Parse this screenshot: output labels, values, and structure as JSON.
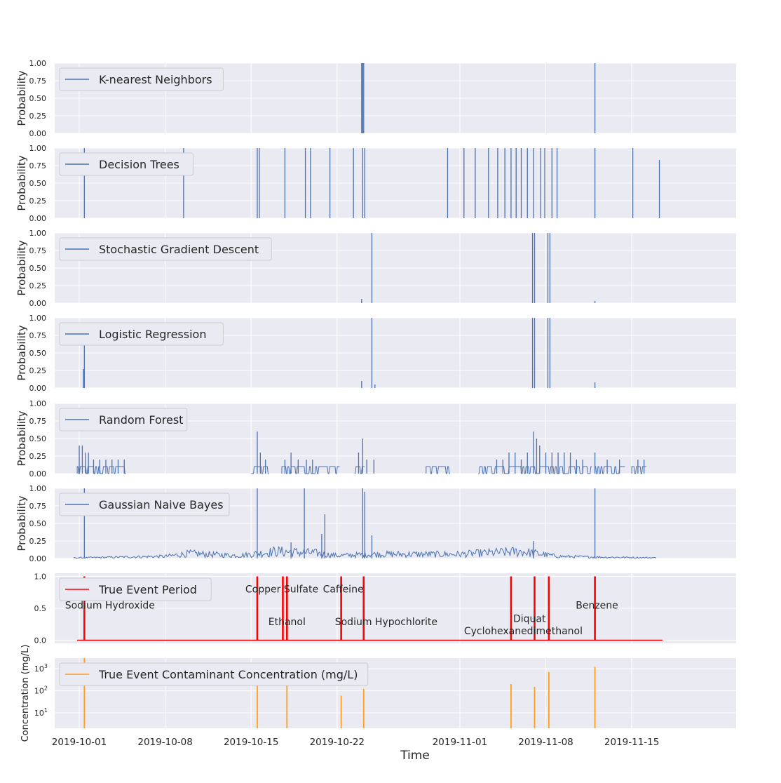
{
  "chart_data": {
    "type": "line",
    "xlabel": "Time",
    "x_range": [
      "2019-09-29T00:00",
      "2019-11-23T12:00"
    ],
    "x_ticks": [
      "2019-10-01",
      "2019-10-08",
      "2019-10-15",
      "2019-10-22",
      "2019-11-01",
      "2019-11-08",
      "2019-11-15"
    ],
    "grid": true,
    "legend_position": "upper-left",
    "panels": [
      {
        "ylabel": "Probability",
        "ylim": [
          0,
          1
        ],
        "yticks": [
          "0.00",
          "0.25",
          "0.50",
          "0.75",
          "1.00"
        ],
        "series": [
          {
            "name": "K-nearest Neighbors",
            "color": "#4c72b0",
            "spikes": [
              {
                "t": "2019-10-24T00:00",
                "v": 1.0
              },
              {
                "t": "2019-10-24T02:00",
                "v": 1.0
              },
              {
                "t": "2019-10-24T04:00",
                "v": 1.0
              },
              {
                "t": "2019-11-12T00:00",
                "v": 1.0
              }
            ]
          }
        ]
      },
      {
        "ylabel": "Probability",
        "ylim": [
          0,
          1
        ],
        "yticks": [
          "0.00",
          "0.25",
          "0.50",
          "0.75",
          "1.00"
        ],
        "series": [
          {
            "name": "Decision Trees",
            "color": "#4c72b0",
            "spikes": [
              {
                "t": "2019-10-01T10:00",
                "v": 1.0
              },
              {
                "t": "2019-10-09T12:00",
                "v": 1.0
              },
              {
                "t": "2019-10-15T12:00",
                "v": 1.0
              },
              {
                "t": "2019-10-15T16:00",
                "v": 1.0
              },
              {
                "t": "2019-10-17T18:00",
                "v": 1.0
              },
              {
                "t": "2019-10-19T10:00",
                "v": 1.0
              },
              {
                "t": "2019-10-19T20:00",
                "v": 1.0
              },
              {
                "t": "2019-10-21T10:00",
                "v": 1.0
              },
              {
                "t": "2019-10-23T08:00",
                "v": 1.0
              },
              {
                "t": "2019-10-24T02:00",
                "v": 1.0
              },
              {
                "t": "2019-10-24T06:00",
                "v": 1.0
              },
              {
                "t": "2019-10-31T00:00",
                "v": 1.0
              },
              {
                "t": "2019-11-01T08:00",
                "v": 1.0
              },
              {
                "t": "2019-11-02T06:00",
                "v": 1.0
              },
              {
                "t": "2019-11-03T08:00",
                "v": 1.0
              },
              {
                "t": "2019-11-04T02:00",
                "v": 1.0
              },
              {
                "t": "2019-11-04T16:00",
                "v": 1.0
              },
              {
                "t": "2019-11-05T04:00",
                "v": 1.0
              },
              {
                "t": "2019-11-05T14:00",
                "v": 1.0
              },
              {
                "t": "2019-11-06T00:00",
                "v": 1.0
              },
              {
                "t": "2019-11-06T12:00",
                "v": 1.0
              },
              {
                "t": "2019-11-07T00:00",
                "v": 1.0
              },
              {
                "t": "2019-11-07T14:00",
                "v": 1.0
              },
              {
                "t": "2019-11-07T22:00",
                "v": 1.0
              },
              {
                "t": "2019-11-08T12:00",
                "v": 1.0
              },
              {
                "t": "2019-11-08T22:00",
                "v": 1.0
              },
              {
                "t": "2019-11-12T00:00",
                "v": 1.0
              },
              {
                "t": "2019-11-15T02:00",
                "v": 1.0
              },
              {
                "t": "2019-11-17T06:00",
                "v": 0.83
              }
            ]
          }
        ]
      },
      {
        "ylabel": "Probability",
        "ylim": [
          0,
          1
        ],
        "yticks": [
          "0.00",
          "0.25",
          "0.50",
          "0.75",
          "1.00"
        ],
        "series": [
          {
            "name": "Stochastic Gradient Descent",
            "color": "#4c72b0",
            "spikes": [
              {
                "t": "2019-10-24T00:00",
                "v": 0.06
              },
              {
                "t": "2019-10-24T20:00",
                "v": 1.0
              },
              {
                "t": "2019-11-06T22:00",
                "v": 1.0
              },
              {
                "t": "2019-11-07T02:00",
                "v": 1.0
              },
              {
                "t": "2019-11-08T04:00",
                "v": 1.0
              },
              {
                "t": "2019-11-08T08:00",
                "v": 1.0
              },
              {
                "t": "2019-11-12T00:00",
                "v": 0.03
              }
            ]
          }
        ]
      },
      {
        "ylabel": "Probability",
        "ylim": [
          0,
          1
        ],
        "yticks": [
          "0.00",
          "0.25",
          "0.50",
          "0.75",
          "1.00"
        ],
        "series": [
          {
            "name": "Logistic Regression",
            "color": "#4c72b0",
            "spikes": [
              {
                "t": "2019-10-01T10:00",
                "v": 0.63
              },
              {
                "t": "2019-10-01T08:00",
                "v": 0.27
              },
              {
                "t": "2019-10-24T00:00",
                "v": 0.1
              },
              {
                "t": "2019-10-24T20:00",
                "v": 1.0
              },
              {
                "t": "2019-10-25T02:00",
                "v": 0.05
              },
              {
                "t": "2019-11-06T22:00",
                "v": 1.0
              },
              {
                "t": "2019-11-07T02:00",
                "v": 1.0
              },
              {
                "t": "2019-11-08T04:00",
                "v": 1.0
              },
              {
                "t": "2019-11-08T08:00",
                "v": 1.0
              },
              {
                "t": "2019-11-12T00:00",
                "v": 0.08
              }
            ]
          }
        ]
      },
      {
        "ylabel": "Probability",
        "ylim": [
          0,
          1
        ],
        "yticks": [
          "0.00",
          "0.25",
          "0.50",
          "0.75",
          "1.00"
        ],
        "series": [
          {
            "name": "Random Forest",
            "color": "#4c72b0",
            "spikes": [
              {
                "t": "2019-10-01T00:00",
                "v": 0.4
              },
              {
                "t": "2019-10-01T06:00",
                "v": 0.4
              },
              {
                "t": "2019-10-01T12:00",
                "v": 0.3
              },
              {
                "t": "2019-10-01T18:00",
                "v": 0.3
              },
              {
                "t": "2019-10-02T04:00",
                "v": 0.2
              },
              {
                "t": "2019-10-02T16:00",
                "v": 0.2
              },
              {
                "t": "2019-10-03T04:00",
                "v": 0.2
              },
              {
                "t": "2019-10-03T16:00",
                "v": 0.2
              },
              {
                "t": "2019-10-04T04:00",
                "v": 0.2
              },
              {
                "t": "2019-10-04T16:00",
                "v": 0.2
              },
              {
                "t": "2019-10-15T12:00",
                "v": 0.6
              },
              {
                "t": "2019-10-15T18:00",
                "v": 0.3
              },
              {
                "t": "2019-10-16T04:00",
                "v": 0.2
              },
              {
                "t": "2019-10-17T18:00",
                "v": 0.2
              },
              {
                "t": "2019-10-18T06:00",
                "v": 0.3
              },
              {
                "t": "2019-10-18T20:00",
                "v": 0.2
              },
              {
                "t": "2019-10-19T12:00",
                "v": 0.2
              },
              {
                "t": "2019-10-20T00:00",
                "v": 0.2
              },
              {
                "t": "2019-10-23T18:00",
                "v": 0.3
              },
              {
                "t": "2019-10-24T02:00",
                "v": 0.5
              },
              {
                "t": "2019-10-24T10:00",
                "v": 0.2
              },
              {
                "t": "2019-10-25T00:00",
                "v": 0.2
              },
              {
                "t": "2019-11-04T00:00",
                "v": 0.2
              },
              {
                "t": "2019-11-04T12:00",
                "v": 0.2
              },
              {
                "t": "2019-11-05T00:00",
                "v": 0.3
              },
              {
                "t": "2019-11-05T12:00",
                "v": 0.3
              },
              {
                "t": "2019-11-06T00:00",
                "v": 0.2
              },
              {
                "t": "2019-11-06T12:00",
                "v": 0.3
              },
              {
                "t": "2019-11-07T00:00",
                "v": 0.6
              },
              {
                "t": "2019-11-07T06:00",
                "v": 0.5
              },
              {
                "t": "2019-11-07T12:00",
                "v": 0.4
              },
              {
                "t": "2019-11-08T00:00",
                "v": 0.3
              },
              {
                "t": "2019-11-08T12:00",
                "v": 0.3
              },
              {
                "t": "2019-11-09T00:00",
                "v": 0.3
              },
              {
                "t": "2019-11-09T12:00",
                "v": 0.3
              },
              {
                "t": "2019-11-10T00:00",
                "v": 0.3
              },
              {
                "t": "2019-11-10T12:00",
                "v": 0.2
              },
              {
                "t": "2019-11-11T00:00",
                "v": 0.2
              },
              {
                "t": "2019-11-12T00:00",
                "v": 0.3
              },
              {
                "t": "2019-11-13T00:00",
                "v": 0.2
              },
              {
                "t": "2019-11-14T00:00",
                "v": 0.2
              },
              {
                "t": "2019-11-15T12:00",
                "v": 0.2
              },
              {
                "t": "2019-11-16T00:00",
                "v": 0.2
              }
            ],
            "baseline": [
              {
                "start": "2019-09-30T20:00",
                "end": "2019-10-04T20:00",
                "v": 0.1
              },
              {
                "start": "2019-10-15T00:00",
                "end": "2019-10-16T12:00",
                "v": 0.1
              },
              {
                "start": "2019-10-17T12:00",
                "end": "2019-10-22T06:00",
                "v": 0.1
              },
              {
                "start": "2019-10-23T10:00",
                "end": "2019-10-24T06:00",
                "v": 0.1
              },
              {
                "start": "2019-10-29T06:00",
                "end": "2019-10-31T06:00",
                "v": 0.1
              },
              {
                "start": "2019-11-02T12:00",
                "end": "2019-11-11T18:00",
                "v": 0.1
              },
              {
                "start": "2019-11-12T00:00",
                "end": "2019-11-14T12:00",
                "v": 0.1
              },
              {
                "start": "2019-11-15T00:00",
                "end": "2019-11-16T06:00",
                "v": 0.1
              }
            ]
          }
        ]
      },
      {
        "ylabel": "Probability",
        "ylim": [
          0,
          1
        ],
        "yticks": [
          "0.00",
          "0.25",
          "0.50",
          "0.75",
          "1.00"
        ],
        "series": [
          {
            "name": "Gaussian Naive Bayes",
            "color": "#4c72b0",
            "noise_level": [
              {
                "t": "2019-10-01T00:00",
                "v": 0.01
              },
              {
                "t": "2019-10-08T00:00",
                "v": 0.03
              },
              {
                "t": "2019-10-10T00:00",
                "v": 0.07
              },
              {
                "t": "2019-10-14T00:00",
                "v": 0.04
              },
              {
                "t": "2019-10-17T00:00",
                "v": 0.1
              },
              {
                "t": "2019-10-20T00:00",
                "v": 0.08
              },
              {
                "t": "2019-10-22T00:00",
                "v": 0.04
              },
              {
                "t": "2019-10-25T00:00",
                "v": 0.06
              },
              {
                "t": "2019-11-01T00:00",
                "v": 0.06
              },
              {
                "t": "2019-11-06T00:00",
                "v": 0.1
              },
              {
                "t": "2019-11-09T00:00",
                "v": 0.03
              },
              {
                "t": "2019-11-12T00:00",
                "v": 0.02
              },
              {
                "t": "2019-11-17T00:00",
                "v": 0.01
              }
            ],
            "spikes": [
              {
                "t": "2019-10-01T10:00",
                "v": 1.0
              },
              {
                "t": "2019-10-15T12:00",
                "v": 1.0
              },
              {
                "t": "2019-10-18T06:00",
                "v": 0.23
              },
              {
                "t": "2019-10-19T08:00",
                "v": 1.0
              },
              {
                "t": "2019-10-21T00:00",
                "v": 0.63
              },
              {
                "t": "2019-10-20T18:00",
                "v": 0.35
              },
              {
                "t": "2019-10-24T02:00",
                "v": 1.0
              },
              {
                "t": "2019-10-24T06:00",
                "v": 0.95
              },
              {
                "t": "2019-10-24T20:00",
                "v": 0.33
              },
              {
                "t": "2019-11-07T00:00",
                "v": 0.25
              },
              {
                "t": "2019-11-12T00:00",
                "v": 1.0
              }
            ]
          }
        ]
      },
      {
        "ylim": [
          -0.05,
          1.05
        ],
        "yticks": [
          "0.0",
          "0.5",
          "1.0"
        ],
        "series": [
          {
            "name": "True Event Period",
            "color": "#ff0000",
            "baseline_range": [
              "2019-09-30T20:00",
              "2019-11-17T12:00"
            ],
            "events": [
              {
                "t": "2019-10-01T10:00",
                "v": 1.0
              },
              {
                "t": "2019-10-15T12:00",
                "v": 1.0
              },
              {
                "t": "2019-10-17T14:00",
                "v": 1.0
              },
              {
                "t": "2019-10-17T22:00",
                "v": 1.0
              },
              {
                "t": "2019-10-22T08:00",
                "v": 1.0
              },
              {
                "t": "2019-10-24T04:00",
                "v": 1.0
              },
              {
                "t": "2019-11-05T04:00",
                "v": 1.0
              },
              {
                "t": "2019-11-07T02:00",
                "v": 1.0
              },
              {
                "t": "2019-11-08T06:00",
                "v": 1.0
              },
              {
                "t": "2019-11-12T00:00",
                "v": 1.0
              }
            ]
          }
        ],
        "annotations": [
          {
            "text": "Sodium Hydroxide",
            "t": "2019-10-03T12:00",
            "v": 0.55
          },
          {
            "text": "Copper Sulfate",
            "t": "2019-10-17T12:00",
            "v": 0.8
          },
          {
            "text": "Ethanol",
            "t": "2019-10-17T22:00",
            "v": 0.29
          },
          {
            "text": "Caffeine",
            "t": "2019-10-22T12:00",
            "v": 0.8
          },
          {
            "text": "Sodium Hypochlorite",
            "t": "2019-10-26T00:00",
            "v": 0.29
          },
          {
            "text": "Diquat",
            "t": "2019-11-06T16:00",
            "v": 0.34
          },
          {
            "text": "Cyclohexanedimethanol",
            "t": "2019-11-06T04:00",
            "v": 0.15
          },
          {
            "text": "Benzene",
            "t": "2019-11-12T04:00",
            "v": 0.55
          }
        ]
      },
      {
        "ylabel": "Concentration (mg/L)",
        "yscale": "log",
        "ylim": [
          2,
          3000
        ],
        "yticks": [
          {
            "value": 10,
            "label": "10",
            "exp": "1"
          },
          {
            "value": 100,
            "label": "10",
            "exp": "2"
          },
          {
            "value": 1000,
            "label": "10",
            "exp": "3"
          }
        ],
        "series": [
          {
            "name": "True Event Contaminant Concentration (mg/L)",
            "color": "#ff9e1f",
            "spikes": [
              {
                "t": "2019-10-01T10:00",
                "v": 3000
              },
              {
                "t": "2019-10-15T12:00",
                "v": 200
              },
              {
                "t": "2019-10-17T22:00",
                "v": 200
              },
              {
                "t": "2019-10-22T08:00",
                "v": 60
              },
              {
                "t": "2019-10-24T04:00",
                "v": 120
              },
              {
                "t": "2019-11-05T04:00",
                "v": 200
              },
              {
                "t": "2019-11-07T02:00",
                "v": 150
              },
              {
                "t": "2019-11-08T06:00",
                "v": 700
              },
              {
                "t": "2019-11-12T00:00",
                "v": 1200
              }
            ]
          }
        ]
      }
    ]
  }
}
